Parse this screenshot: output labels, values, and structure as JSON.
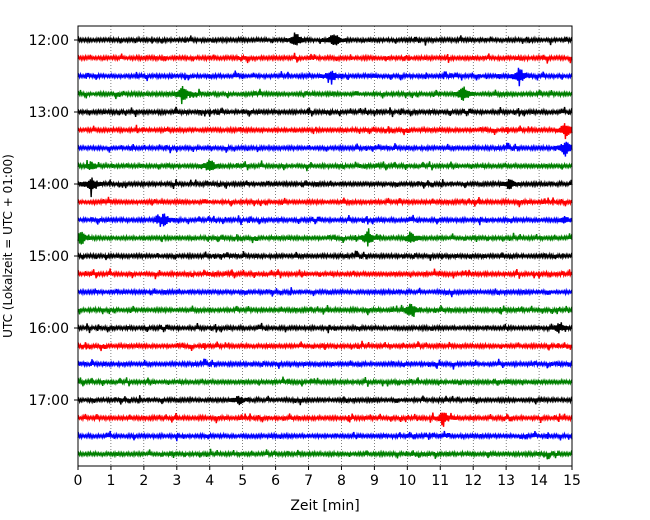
{
  "chart_data": {
    "type": "line",
    "title": "",
    "xlabel": "Zeit  [min]",
    "ylabel": "UTC (Lokalzeit = UTC + 01:00)",
    "xlim": [
      0,
      15
    ],
    "x_ticks": [
      0,
      1,
      2,
      3,
      4,
      5,
      6,
      7,
      8,
      9,
      10,
      11,
      12,
      13,
      14,
      15
    ],
    "y_tick_labels": [
      "12:00",
      "13:00",
      "14:00",
      "15:00",
      "16:00",
      "17:00"
    ],
    "grid": "vertical dotted",
    "colors": [
      "#000000",
      "#ff0000",
      "#0000ff",
      "#008000"
    ],
    "traces": [
      {
        "start": "12:00",
        "color": "#000000",
        "events": [
          [
            6.6,
            1.0
          ],
          [
            7.8,
            0.9
          ]
        ]
      },
      {
        "start": "12:15",
        "color": "#ff0000",
        "events": []
      },
      {
        "start": "12:30",
        "color": "#0000ff",
        "events": [
          [
            7.7,
            0.9
          ],
          [
            13.4,
            1.1
          ]
        ]
      },
      {
        "start": "12:45",
        "color": "#008000",
        "events": [
          [
            3.2,
            1.1
          ],
          [
            11.7,
            1.0
          ]
        ]
      },
      {
        "start": "13:00",
        "color": "#000000",
        "events": []
      },
      {
        "start": "13:15",
        "color": "#ff0000",
        "events": [
          [
            14.8,
            1.0
          ]
        ]
      },
      {
        "start": "13:30",
        "color": "#0000ff",
        "events": [
          [
            14.8,
            1.0
          ]
        ]
      },
      {
        "start": "13:45",
        "color": "#008000",
        "events": [
          [
            4.0,
            0.8
          ],
          [
            0.4,
            0.5
          ]
        ]
      },
      {
        "start": "14:00",
        "color": "#000000",
        "events": [
          [
            0.4,
            1.0
          ],
          [
            13.1,
            0.8
          ]
        ]
      },
      {
        "start": "14:15",
        "color": "#ff0000",
        "events": []
      },
      {
        "start": "14:30",
        "color": "#0000ff",
        "events": [
          [
            2.6,
            0.8
          ],
          [
            14.8,
            0.4
          ]
        ]
      },
      {
        "start": "14:45",
        "color": "#008000",
        "events": [
          [
            0.1,
            0.8
          ],
          [
            8.8,
            0.9
          ],
          [
            10.1,
            0.8
          ]
        ]
      },
      {
        "start": "15:00",
        "color": "#000000",
        "events": []
      },
      {
        "start": "15:15",
        "color": "#ff0000",
        "events": []
      },
      {
        "start": "15:30",
        "color": "#0000ff",
        "events": []
      },
      {
        "start": "15:45",
        "color": "#008000",
        "events": [
          [
            10.1,
            0.9
          ]
        ]
      },
      {
        "start": "16:00",
        "color": "#000000",
        "events": [
          [
            14.6,
            0.5
          ]
        ]
      },
      {
        "start": "16:15",
        "color": "#ff0000",
        "events": []
      },
      {
        "start": "16:30",
        "color": "#0000ff",
        "events": []
      },
      {
        "start": "16:45",
        "color": "#008000",
        "events": []
      },
      {
        "start": "17:00",
        "color": "#000000",
        "events": [
          [
            4.9,
            0.5
          ]
        ]
      },
      {
        "start": "17:15",
        "color": "#ff0000",
        "events": [
          [
            11.1,
            0.9
          ]
        ]
      },
      {
        "start": "17:30",
        "color": "#0000ff",
        "events": []
      },
      {
        "start": "17:45",
        "color": "#008000",
        "events": []
      }
    ]
  }
}
